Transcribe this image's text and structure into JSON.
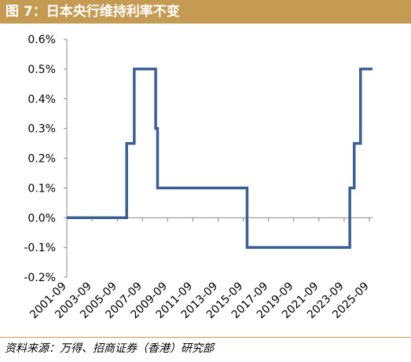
{
  "header": {
    "title": "图 7：日本央行维持利率不变"
  },
  "footer": {
    "source": "资料来源：万得、招商证券（香港）研究部"
  },
  "colors": {
    "title_bg": "#c59a52",
    "line": "#3a5f95",
    "axis": "#888888"
  },
  "chart_data": {
    "type": "line",
    "title": "",
    "xlabel": "",
    "ylabel": "",
    "xlim": [
      2001.75,
      2026.0
    ],
    "ylim": [
      -0.2,
      0.6
    ],
    "yticks": [
      -0.2,
      -0.1,
      0.0,
      0.1,
      0.2,
      0.3,
      0.4,
      0.5,
      0.6
    ],
    "ytick_labels": [
      "-0.2%",
      "-0.1%",
      "0.0%",
      "0.1%",
      "0.2%",
      "0.3%",
      "0.4%",
      "0.5%",
      "0.6%"
    ],
    "xtick_labels": [
      "2001-09",
      "2003-09",
      "2005-09",
      "2007-09",
      "2009-09",
      "2011-09",
      "2013-09",
      "2015-09",
      "2017-09",
      "2019-09",
      "2021-09",
      "2023-09",
      "2025-09"
    ],
    "xticks": [
      2001.75,
      2003.75,
      2005.75,
      2007.75,
      2009.75,
      2011.75,
      2013.75,
      2015.75,
      2017.75,
      2019.75,
      2021.75,
      2023.75,
      2025.75
    ],
    "grid": false,
    "legend": "none",
    "series": [
      {
        "step": "post",
        "x": [
          2001.75,
          2006.5,
          2007.1,
          2008.8,
          2008.95,
          2016.05,
          2024.2,
          2024.55,
          2025.05,
          2026.0
        ],
        "y": [
          0.0,
          0.25,
          0.5,
          0.3,
          0.1,
          -0.1,
          0.1,
          0.25,
          0.5,
          0.5
        ]
      }
    ]
  }
}
